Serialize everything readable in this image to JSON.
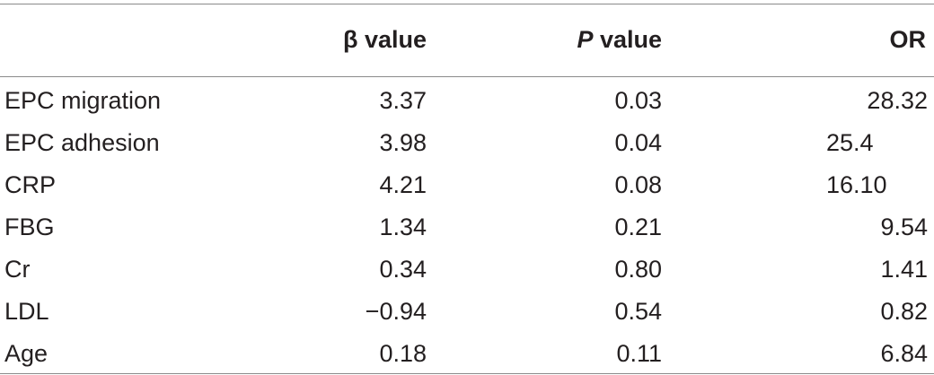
{
  "table": {
    "headers": {
      "row_label": "",
      "beta_symbol": "β",
      "beta_suffix": " value",
      "p_symbol": "P",
      "p_suffix": " value",
      "or": "OR"
    },
    "rows": [
      {
        "label": "EPC migration",
        "beta": "3.37",
        "p": "0.03",
        "or": "28.32"
      },
      {
        "label": "EPC adhesion",
        "beta": "3.98",
        "p": "0.04",
        "or": "25.4"
      },
      {
        "label": "CRP",
        "beta": "4.21",
        "p": "0.08",
        "or": "16.10"
      },
      {
        "label": "FBG",
        "beta": "1.34",
        "p": "0.21",
        "or": "9.54"
      },
      {
        "label": "Cr",
        "beta": "0.34",
        "p": "0.80",
        "or": "1.41"
      },
      {
        "label": "LDL",
        "beta": "−0.94",
        "p": "0.54",
        "or": "0.82"
      },
      {
        "label": "Age",
        "beta": "0.18",
        "p": "0.11",
        "or": "6.84"
      }
    ]
  }
}
